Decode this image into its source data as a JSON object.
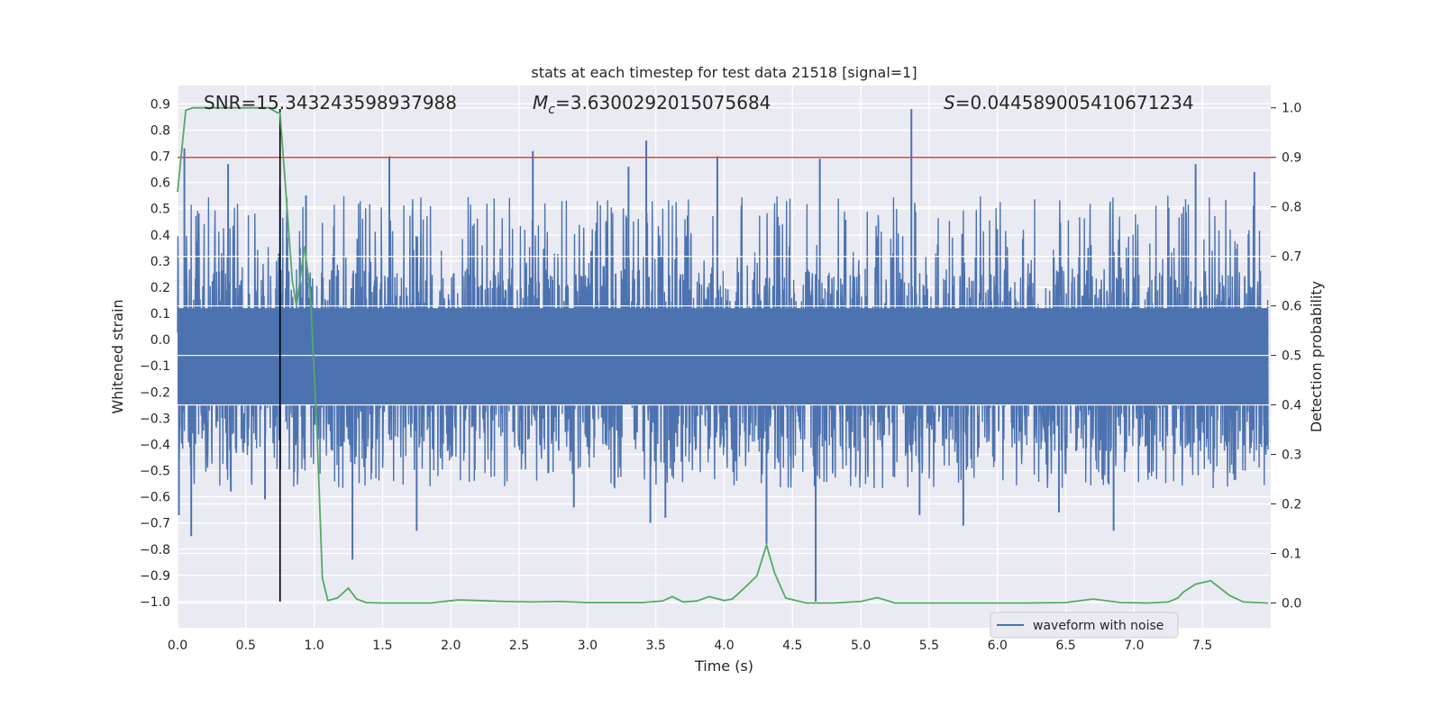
{
  "chart_data": {
    "type": "line",
    "title": "stats at each timestep for test data 21518 [signal=1]",
    "xlabel": "Time (s)",
    "ylabel": "Whitened strain",
    "ylabel_right": "Detection probability",
    "xlim": [
      0.0,
      8.0
    ],
    "ylim": [
      -1.1,
      0.97
    ],
    "ylim_right": [
      -0.05,
      1.045
    ],
    "x_ticks": [
      0.0,
      0.5,
      1.0,
      1.5,
      2.0,
      2.5,
      3.0,
      3.5,
      4.0,
      4.5,
      5.0,
      5.5,
      6.0,
      6.5,
      7.0,
      7.5
    ],
    "x_tick_labels": [
      "0.0",
      "0.5",
      "1.0",
      "1.5",
      "2.0",
      "2.5",
      "3.0",
      "3.5",
      "4.0",
      "4.5",
      "5.0",
      "5.5",
      "6.0",
      "6.5",
      "7.0",
      "7.5"
    ],
    "y_ticks": [
      0.9,
      0.8,
      0.7,
      0.6,
      0.5,
      0.4,
      0.3,
      0.2,
      0.1,
      0.0,
      -0.1,
      -0.2,
      -0.3,
      -0.4,
      -0.5,
      -0.6,
      -0.7,
      -0.8,
      -0.9,
      -1.0
    ],
    "y_tick_labels": [
      "0.9",
      "0.8",
      "0.7",
      "0.6",
      "0.5",
      "0.4",
      "0.3",
      "0.2",
      "0.1",
      "0.0",
      "−0.1",
      "−0.2",
      "−0.3",
      "−0.4",
      "−0.5",
      "−0.6",
      "−0.7",
      "−0.8",
      "−0.9",
      "−1.0"
    ],
    "y_ticks_right": [
      1.0,
      0.9,
      0.8,
      0.7,
      0.6,
      0.5,
      0.4,
      0.3,
      0.2,
      0.1,
      0.0
    ],
    "y_tick_labels_right": [
      "1.0",
      "0.9",
      "0.8",
      "0.7",
      "0.6",
      "0.5",
      "0.4",
      "0.3",
      "0.2",
      "0.1",
      "0.0"
    ],
    "grid": true,
    "legend_position": "lower-right",
    "annotations": {
      "snr": "SNR=15.343243598937988",
      "mc_symbol": "M",
      "mc_subscript": "c",
      "mc_value": "=3.6300292015075684",
      "s_symbol": "S",
      "s_value": "=0.044589005410671234"
    },
    "colors": {
      "background": "#eaeaf2",
      "grid": "#ffffff",
      "waveform": "#4c72b0",
      "probability": "#55a868",
      "threshold": "#c44e52",
      "marker": "#000000"
    },
    "series": [
      {
        "name": "waveform with noise",
        "kind": "noise-band",
        "axis": "left",
        "x_range": [
          0.0,
          7.98
        ],
        "band_min": -0.43,
        "band_max": 0.27,
        "peaks": [
          [
            0.01,
            -0.67
          ],
          [
            0.05,
            0.73
          ],
          [
            0.1,
            -0.75
          ],
          [
            0.37,
            0.67
          ],
          [
            0.39,
            -0.58
          ],
          [
            0.64,
            -0.61
          ],
          [
            0.75,
            0.58
          ],
          [
            0.94,
            0.55
          ],
          [
            1.28,
            -0.84
          ],
          [
            1.55,
            0.7
          ],
          [
            1.75,
            -0.73
          ],
          [
            2.6,
            0.72
          ],
          [
            2.9,
            -0.64
          ],
          [
            3.3,
            0.66
          ],
          [
            3.43,
            0.76
          ],
          [
            3.46,
            -0.7
          ],
          [
            3.57,
            -0.68
          ],
          [
            3.95,
            0.7
          ],
          [
            4.31,
            -0.78
          ],
          [
            4.67,
            -1.0
          ],
          [
            4.7,
            0.69
          ],
          [
            5.37,
            0.88
          ],
          [
            5.43,
            -0.67
          ],
          [
            5.75,
            -0.71
          ],
          [
            6.45,
            -0.66
          ],
          [
            6.85,
            -0.73
          ],
          [
            7.45,
            0.67
          ],
          [
            7.88,
            0.64
          ]
        ]
      },
      {
        "name": "",
        "kind": "probability",
        "axis": "right",
        "x": [
          0.0,
          0.06,
          0.11,
          0.17,
          0.22,
          0.28,
          0.34,
          0.39,
          0.45,
          0.5,
          0.56,
          0.62,
          0.67,
          0.73,
          0.75,
          0.79,
          0.84,
          0.87,
          0.93,
          0.97,
          1.02,
          1.06,
          1.1,
          1.17,
          1.25,
          1.31,
          1.38,
          1.5,
          1.7,
          1.85,
          2.05,
          2.2,
          2.4,
          2.6,
          2.8,
          3.0,
          3.2,
          3.4,
          3.55,
          3.62,
          3.7,
          3.8,
          3.89,
          4.0,
          4.06,
          4.14,
          4.24,
          4.31,
          4.37,
          4.45,
          4.6,
          4.8,
          5.0,
          5.12,
          5.25,
          5.4,
          5.6,
          5.9,
          6.2,
          6.5,
          6.7,
          6.9,
          7.1,
          7.25,
          7.32,
          7.36,
          7.45,
          7.56,
          7.7,
          7.8,
          7.98
        ],
        "y": [
          0.83,
          0.995,
          1.0,
          1.0,
          1.0,
          1.0,
          1.0,
          1.0,
          1.0,
          1.0,
          1.0,
          1.0,
          1.0,
          0.99,
          0.99,
          0.84,
          0.65,
          0.6,
          0.72,
          0.63,
          0.35,
          0.05,
          0.005,
          0.01,
          0.03,
          0.008,
          0.001,
          0.0,
          0.0,
          0.0,
          0.006,
          0.005,
          0.003,
          0.002,
          0.003,
          0.001,
          0.001,
          0.001,
          0.004,
          0.013,
          0.002,
          0.004,
          0.013,
          0.005,
          0.008,
          0.028,
          0.055,
          0.117,
          0.06,
          0.01,
          0.0,
          0.0,
          0.003,
          0.011,
          0.0,
          0.0,
          0.0,
          0.0,
          0.0,
          0.001,
          0.008,
          0.001,
          0.0,
          0.002,
          0.01,
          0.022,
          0.038,
          0.045,
          0.015,
          0.002,
          0.0
        ]
      }
    ],
    "threshold_right": 0.9,
    "marker_x": 0.75,
    "marker_y_range": [
      -1.0,
      0.88
    ]
  }
}
